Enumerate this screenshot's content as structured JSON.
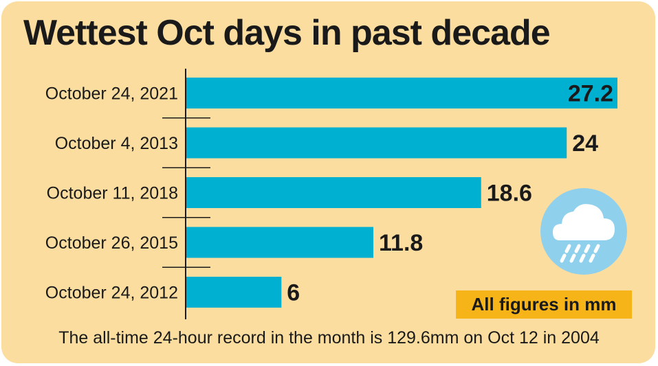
{
  "title": "Wettest Oct days in past decade",
  "unit_note": "All figures in mm",
  "footnote": "The all-time 24-hour record in the month is 129.6mm on Oct 12 in 2004",
  "colors": {
    "background": "#fbdda0",
    "bar": "#00b0d0",
    "badge": "#f7b418",
    "icon_circle": "#8fd0ec",
    "text": "#1a1a1a"
  },
  "icon": "rain-cloud-icon",
  "chart_data": {
    "type": "bar",
    "orientation": "horizontal",
    "title": "Wettest Oct days in past decade",
    "categories": [
      "October 24, 2021",
      "October 4, 2013",
      "October 11, 2018",
      "October 26, 2015",
      "October 24, 2012"
    ],
    "values": [
      27.2,
      24,
      18.6,
      11.8,
      6
    ],
    "value_labels": [
      "27.2",
      "24",
      "18.6",
      "11.8",
      "6"
    ],
    "unit": "mm",
    "xlim": [
      0,
      27.2
    ],
    "grid": false
  }
}
